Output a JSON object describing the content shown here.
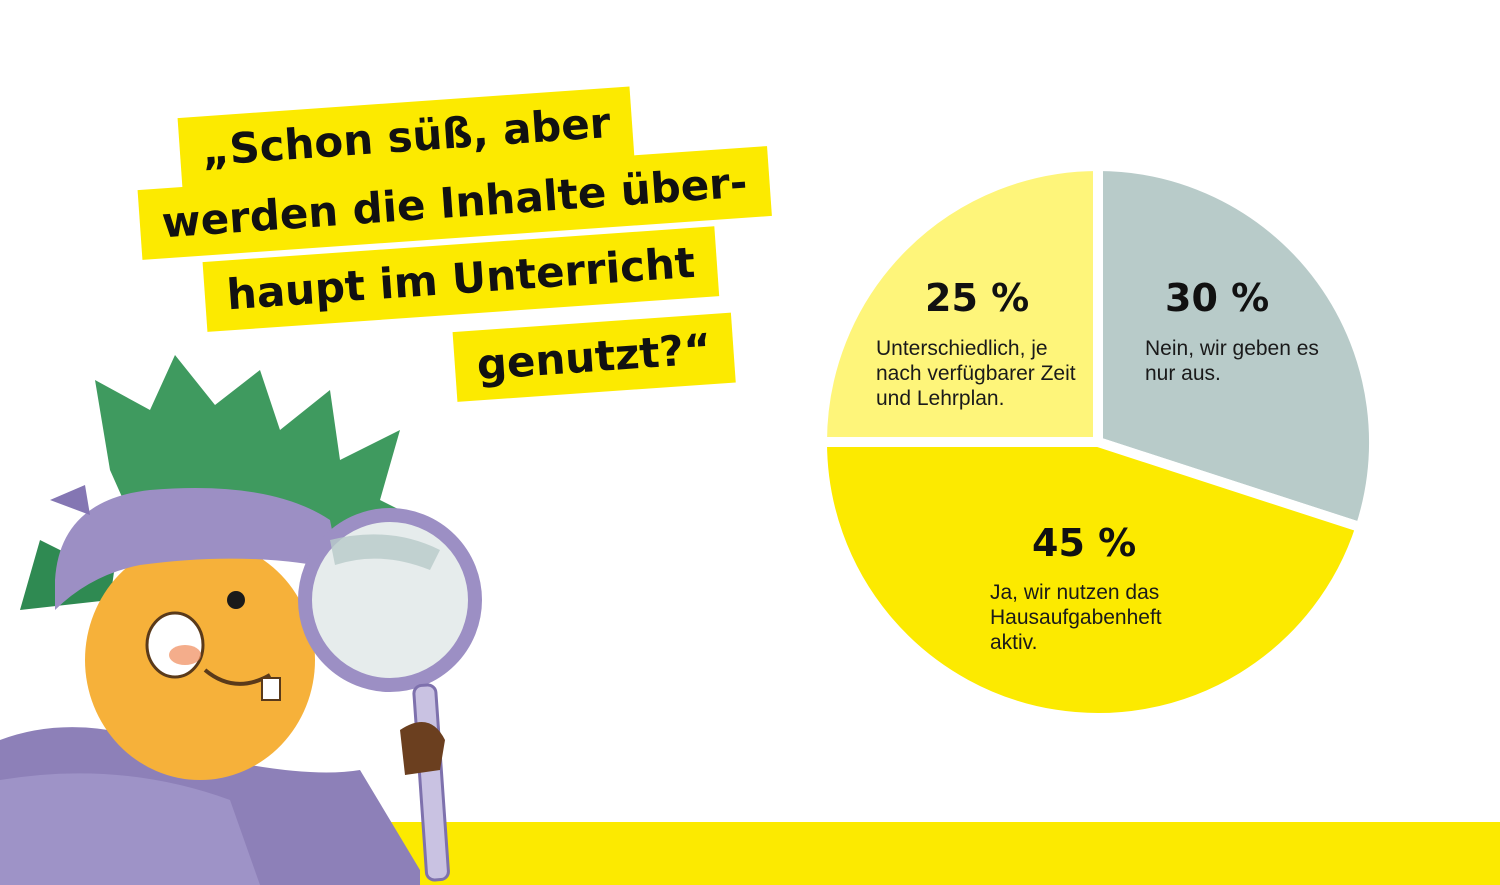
{
  "quote": {
    "lines": [
      "„Schon süß, aber",
      "werden die Inhalte über-",
      "haupt im Unterricht",
      "genutzt?“"
    ]
  },
  "colors": {
    "accent_yellow": "#fcea00",
    "light_yellow": "#fef57a",
    "grey_green": "#b8cbc9",
    "hat_purple": "#9c8fc4",
    "leaf_green": "#3f9a5f",
    "mascot_orange": "#f6b13a"
  },
  "icons": {
    "mascot": "detective-mascot-with-magnifying-glass"
  },
  "chart_data": {
    "type": "pie",
    "title": "",
    "slices": [
      {
        "label": "Nein, wir geben es nur aus.",
        "value": 30,
        "display": "30 %",
        "color": "#b8cbc9"
      },
      {
        "label": "Ja, wir nutzen das Hausaufgabenheft aktiv.",
        "value": 45,
        "display": "45 %",
        "color": "#fcea00"
      },
      {
        "label": "Unterschiedlich, je nach verfügbarer Zeit und Lehrplan.",
        "value": 25,
        "display": "25 %",
        "color": "#fef57a"
      }
    ],
    "legend": "none",
    "data_labels": "inside slices"
  }
}
